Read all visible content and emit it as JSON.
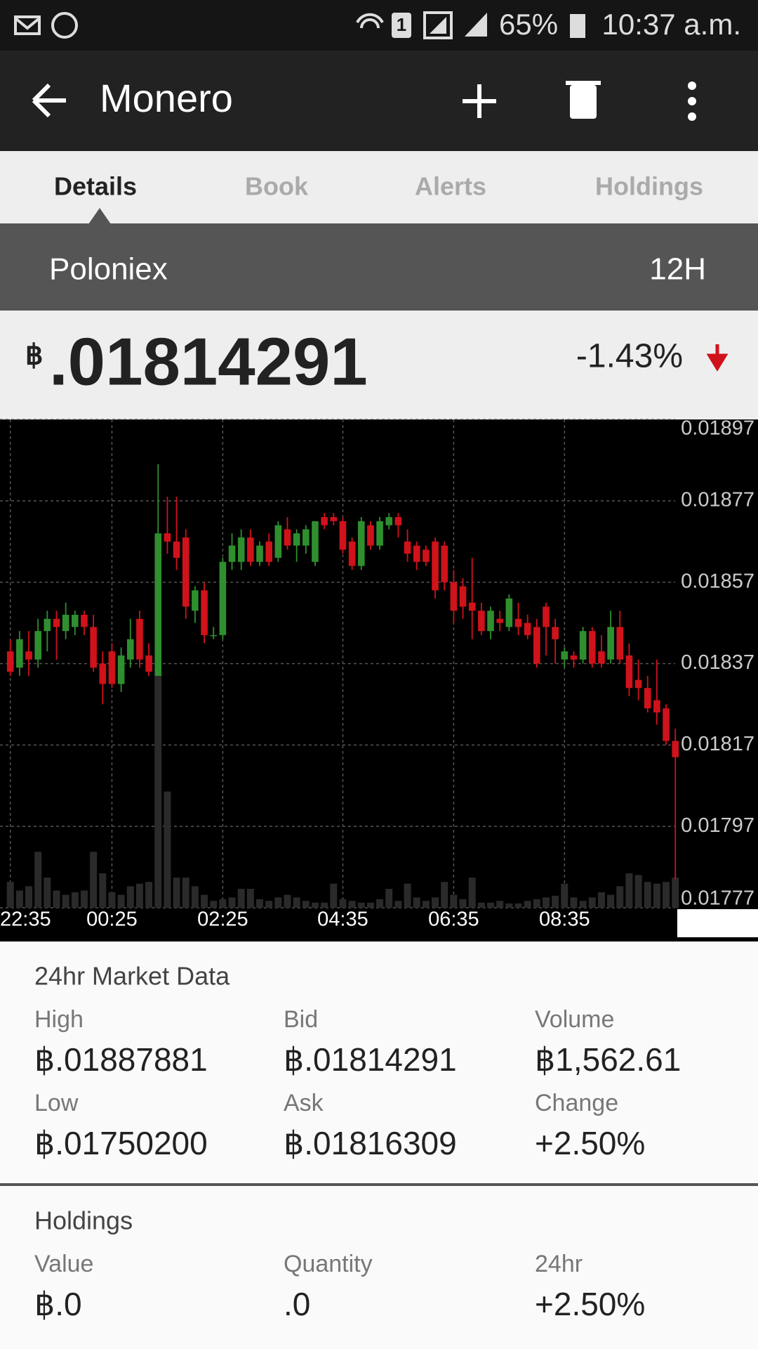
{
  "status_bar": {
    "sim": "1",
    "battery": "65%",
    "time": "10:37 a.m."
  },
  "app_bar": {
    "title": "Monero"
  },
  "tabs": [
    "Details",
    "Book",
    "Alerts",
    "Holdings"
  ],
  "exchange": {
    "name": "Poloniex",
    "period": "12H"
  },
  "price": {
    "symbol": "฿",
    "value": ".01814291",
    "change": "-1.43%"
  },
  "chart_data": {
    "type": "candlestick",
    "categories": [
      "22:35",
      null,
      null,
      null,
      null,
      null,
      null,
      null,
      null,
      null,
      null,
      "00:25",
      null,
      null,
      null,
      null,
      null,
      null,
      null,
      null,
      null,
      null,
      null,
      "02:25",
      null,
      null,
      null,
      null,
      null,
      null,
      null,
      null,
      null,
      null,
      null,
      null,
      "04:35",
      null,
      null,
      null,
      null,
      null,
      null,
      null,
      null,
      null,
      null,
      null,
      "06:35",
      null,
      null,
      null,
      null,
      null,
      null,
      null,
      null,
      null,
      null,
      null,
      "08:35",
      null,
      null,
      null,
      null,
      null,
      null,
      null,
      null,
      null,
      null,
      null,
      null
    ],
    "open": [
      0.0184,
      0.01836,
      0.0184,
      0.01838,
      0.01845,
      0.01848,
      0.01845,
      0.01846,
      0.01849,
      0.01846,
      0.01837,
      0.0184,
      0.01832,
      0.01838,
      0.01848,
      0.01839,
      0.01834,
      0.01869,
      0.01867,
      0.01868,
      0.0185,
      0.01855,
      0.01844,
      0.01844,
      0.01862,
      0.01862,
      0.01868,
      0.01862,
      0.01867,
      0.01863,
      0.0187,
      0.01866,
      0.01866,
      0.01862,
      0.01873,
      0.01873,
      0.01872,
      0.01867,
      0.01861,
      0.01871,
      0.01866,
      0.01871,
      0.01873,
      0.01867,
      0.01866,
      0.01865,
      0.01867,
      0.01866,
      0.01857,
      0.01856,
      0.01852,
      0.0185,
      0.01845,
      0.01848,
      0.01846,
      0.01848,
      0.01847,
      0.01846,
      0.01851,
      0.01846,
      0.01838,
      0.01839,
      0.01838,
      0.01845,
      0.0184,
      0.01838,
      0.01846,
      0.01839,
      0.01833,
      0.01831,
      0.01828,
      0.01826,
      0.01818
    ],
    "high": [
      0.01843,
      0.01845,
      0.01845,
      0.01848,
      0.0185,
      0.0185,
      0.01852,
      0.0185,
      0.0185,
      0.01849,
      0.0184,
      0.01842,
      0.01841,
      0.01848,
      0.0185,
      0.01842,
      0.01886,
      0.01878,
      0.01878,
      0.0187,
      0.01856,
      0.01857,
      0.01846,
      0.01863,
      0.01869,
      0.0187,
      0.0187,
      0.01867,
      0.01869,
      0.01872,
      0.01873,
      0.0187,
      0.01871,
      0.01872,
      0.01874,
      0.01874,
      0.01873,
      0.01868,
      0.01873,
      0.01872,
      0.01873,
      0.01874,
      0.01874,
      0.0187,
      0.01867,
      0.01866,
      0.01868,
      0.01867,
      0.0186,
      0.01858,
      0.01863,
      0.01852,
      0.01851,
      0.0185,
      0.01854,
      0.01852,
      0.01849,
      0.01848,
      0.01852,
      0.01848,
      0.01841,
      0.0184,
      0.01846,
      0.01846,
      0.01844,
      0.0185,
      0.0185,
      0.01842,
      0.01838,
      0.01834,
      0.01838,
      0.01827,
      0.01821
    ],
    "low": [
      0.01834,
      0.01834,
      0.01834,
      0.01836,
      0.0184,
      0.01838,
      0.01843,
      0.01844,
      0.01844,
      0.01835,
      0.01827,
      0.01831,
      0.0183,
      0.01836,
      0.01836,
      0.01834,
      0.01834,
      0.01864,
      0.0186,
      0.01848,
      0.01847,
      0.01842,
      0.01843,
      0.01843,
      0.0186,
      0.0186,
      0.01861,
      0.01861,
      0.01861,
      0.01862,
      0.01865,
      0.01862,
      0.01864,
      0.01861,
      0.0187,
      0.01871,
      0.01864,
      0.0186,
      0.0186,
      0.01865,
      0.01865,
      0.0187,
      0.01868,
      0.01862,
      0.0186,
      0.01861,
      0.01853,
      0.01855,
      0.01847,
      0.01848,
      0.01843,
      0.01844,
      0.01843,
      0.01845,
      0.01845,
      0.01844,
      0.01843,
      0.01836,
      0.01839,
      0.01837,
      0.01836,
      0.01836,
      0.01837,
      0.01836,
      0.01836,
      0.01837,
      0.01837,
      0.01829,
      0.01828,
      0.01825,
      0.01822,
      0.01817,
      0.01784
    ],
    "close": [
      0.01835,
      0.01843,
      0.01838,
      0.01845,
      0.01848,
      0.01846,
      0.01849,
      0.01849,
      0.01846,
      0.01836,
      0.01832,
      0.01832,
      0.01839,
      0.01843,
      0.01838,
      0.01835,
      0.01869,
      0.01867,
      0.01863,
      0.01851,
      0.01855,
      0.01844,
      0.01844,
      0.01862,
      0.01866,
      0.01868,
      0.01862,
      0.01866,
      0.01862,
      0.01871,
      0.01866,
      0.01869,
      0.0187,
      0.01872,
      0.01871,
      0.01872,
      0.01865,
      0.01861,
      0.01872,
      0.01866,
      0.01872,
      0.01873,
      0.01871,
      0.01864,
      0.01862,
      0.01862,
      0.01855,
      0.01857,
      0.0185,
      0.01851,
      0.0185,
      0.01845,
      0.0185,
      0.01847,
      0.01853,
      0.01846,
      0.01844,
      0.01837,
      0.01846,
      0.01843,
      0.0184,
      0.01838,
      0.01845,
      0.01837,
      0.01837,
      0.01846,
      0.01838,
      0.01831,
      0.01831,
      0.01826,
      0.01825,
      0.01818,
      0.01814
    ],
    "volume": [
      30,
      20,
      25,
      65,
      35,
      20,
      15,
      18,
      20,
      65,
      40,
      18,
      15,
      25,
      28,
      30,
      270,
      135,
      35,
      35,
      25,
      15,
      8,
      10,
      12,
      22,
      22,
      10,
      8,
      12,
      15,
      12,
      8,
      6,
      6,
      28,
      10,
      8,
      6,
      6,
      10,
      22,
      8,
      28,
      12,
      8,
      12,
      30,
      15,
      10,
      35,
      6,
      6,
      8,
      5,
      5,
      8,
      10,
      12,
      14,
      28,
      12,
      8,
      12,
      18,
      15,
      25,
      40,
      38,
      30,
      28,
      30,
      35
    ],
    "up_color": "#2f8f2f",
    "down_color": "#d0121b",
    "volume_color": "#2a2a2a",
    "ylim": [
      0.01777,
      0.01897
    ],
    "yticks": [
      0.01777,
      0.01797,
      0.01817,
      0.01837,
      0.01857,
      0.01877,
      0.01897
    ],
    "grid": true
  },
  "market_data": {
    "title": "24hr Market Data",
    "rows": [
      [
        {
          "label": "High",
          "value": "฿.01887881"
        },
        {
          "label": "Bid",
          "value": "฿.01814291"
        },
        {
          "label": "Volume",
          "value": "฿1,562.61"
        }
      ],
      [
        {
          "label": "Low",
          "value": "฿.01750200"
        },
        {
          "label": "Ask",
          "value": "฿.01816309"
        },
        {
          "label": "Change",
          "value": "+2.50%"
        }
      ]
    ]
  },
  "holdings": {
    "title": "Holdings",
    "rows": [
      [
        {
          "label": "Value",
          "value": "฿.0"
        },
        {
          "label": "Quantity",
          "value": ".0"
        },
        {
          "label": "24hr",
          "value": "+2.50%"
        }
      ]
    ]
  }
}
